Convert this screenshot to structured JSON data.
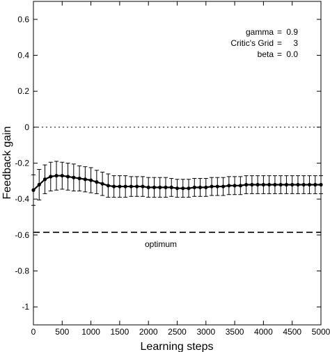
{
  "chart_data": {
    "type": "line",
    "xlabel": "Learning steps",
    "ylabel": "Feedback gain",
    "xlim": [
      0,
      5000
    ],
    "ylim": [
      -1.1,
      0.7
    ],
    "xticks": [
      0,
      500,
      1000,
      1500,
      2000,
      2500,
      3000,
      3500,
      4000,
      4500,
      5000
    ],
    "yticks": [
      -1,
      -0.8,
      -0.6,
      -0.4,
      -0.2,
      0,
      0.2,
      0.4,
      0.6
    ],
    "xtick_labels": [
      "0",
      "500",
      "1000",
      "1500",
      "2000",
      "2500",
      "3000",
      "3500",
      "4000",
      "4500",
      "5000"
    ],
    "ytick_labels": [
      "-1",
      "-0.8",
      "-0.6",
      "-0.4",
      "-0.2",
      "0",
      "0.2",
      "0.4",
      "0.6"
    ],
    "grid": false,
    "series": [
      {
        "style": "line-with-markers-and-error-bars",
        "color": "#000000",
        "x": [
          0,
          100,
          200,
          300,
          400,
          500,
          600,
          700,
          800,
          900,
          1000,
          1100,
          1200,
          1300,
          1400,
          1500,
          1600,
          1700,
          1800,
          1900,
          2000,
          2100,
          2200,
          2300,
          2400,
          2500,
          2600,
          2700,
          2800,
          2900,
          3000,
          3100,
          3200,
          3300,
          3400,
          3500,
          3600,
          3700,
          3800,
          3900,
          4000,
          4100,
          4200,
          4300,
          4400,
          4500,
          4600,
          4700,
          4800,
          4900,
          5000
        ],
        "y": [
          -0.35,
          -0.32,
          -0.29,
          -0.275,
          -0.27,
          -0.27,
          -0.275,
          -0.28,
          -0.285,
          -0.29,
          -0.295,
          -0.305,
          -0.315,
          -0.325,
          -0.33,
          -0.33,
          -0.33,
          -0.33,
          -0.33,
          -0.33,
          -0.335,
          -0.335,
          -0.335,
          -0.335,
          -0.335,
          -0.34,
          -0.34,
          -0.34,
          -0.335,
          -0.335,
          -0.335,
          -0.33,
          -0.33,
          -0.33,
          -0.325,
          -0.325,
          -0.325,
          -0.32,
          -0.32,
          -0.32,
          -0.32,
          -0.32,
          -0.32,
          -0.32,
          -0.32,
          -0.32,
          -0.32,
          -0.32,
          -0.32,
          -0.32,
          -0.32
        ],
        "err": [
          0.085,
          0.085,
          0.08,
          0.08,
          0.08,
          0.075,
          0.075,
          0.075,
          0.07,
          0.07,
          0.07,
          0.065,
          0.065,
          0.065,
          0.06,
          0.06,
          0.06,
          0.055,
          0.055,
          0.055,
          0.055,
          0.055,
          0.055,
          0.055,
          0.05,
          0.05,
          0.05,
          0.05,
          0.05,
          0.05,
          0.05,
          0.05,
          0.05,
          0.05,
          0.05,
          0.05,
          0.05,
          0.05,
          0.05,
          0.05,
          0.05,
          0.05,
          0.05,
          0.05,
          0.05,
          0.05,
          0.05,
          0.05,
          0.05,
          0.05,
          0.05
        ]
      }
    ],
    "reference_lines": [
      {
        "y": 0,
        "style": "dotted",
        "color": "#000000"
      },
      {
        "y": -0.585,
        "style": "dashed",
        "color": "#000000",
        "label": "optimum"
      }
    ],
    "annotations": [
      {
        "name": "gamma",
        "eq": "=",
        "value": "0.9"
      },
      {
        "name": "Critic's Grid",
        "eq": "=",
        "value": "3"
      },
      {
        "name": "beta",
        "eq": "=",
        "value": "0.0"
      }
    ]
  }
}
